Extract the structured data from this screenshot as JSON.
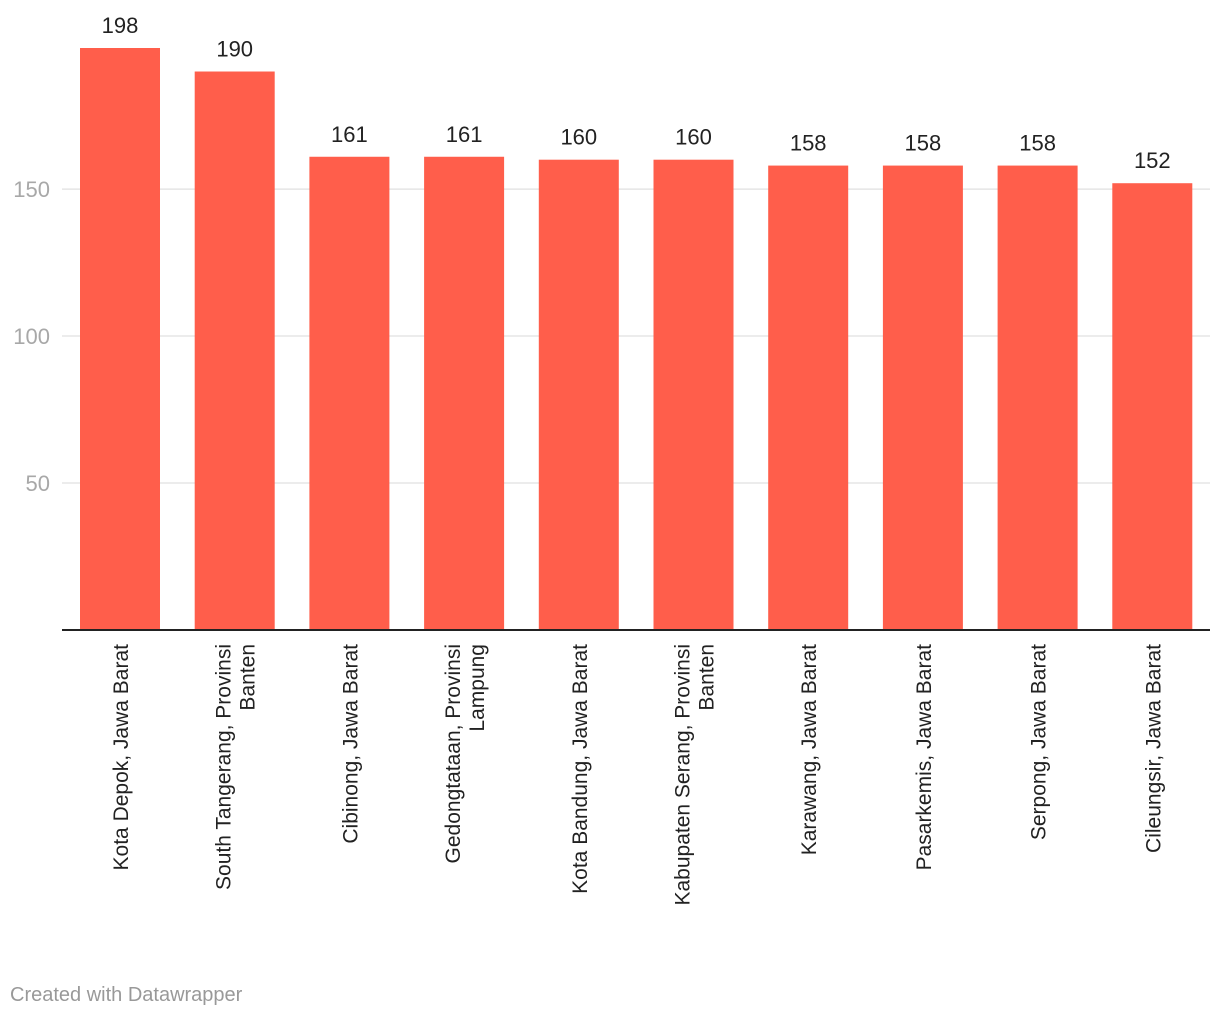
{
  "chart_data": {
    "type": "bar",
    "categories": [
      [
        "Kota Depok, Jawa Barat"
      ],
      [
        "South Tangerang, Provinsi",
        "Banten"
      ],
      [
        "Cibinong, Jawa Barat"
      ],
      [
        "Gedongtataan, Provinsi",
        "Lampung"
      ],
      [
        "Kota Bandung, Jawa Barat"
      ],
      [
        "Kabupaten Serang, Provinsi",
        "Banten"
      ],
      [
        "Karawang, Jawa Barat"
      ],
      [
        "Pasarkemis, Jawa Barat"
      ],
      [
        "Serpong, Jawa Barat"
      ],
      [
        "Cileungsir, Jawa Barat"
      ]
    ],
    "values": [
      198,
      190,
      161,
      161,
      160,
      160,
      158,
      158,
      158,
      152
    ],
    "yticks": [
      50,
      100,
      150
    ],
    "ylim": [
      0,
      198
    ],
    "color": "#ff5e4b",
    "title": "",
    "xlabel": "",
    "ylabel": "",
    "grid": true
  },
  "footer": {
    "credit": "Created with Datawrapper"
  }
}
